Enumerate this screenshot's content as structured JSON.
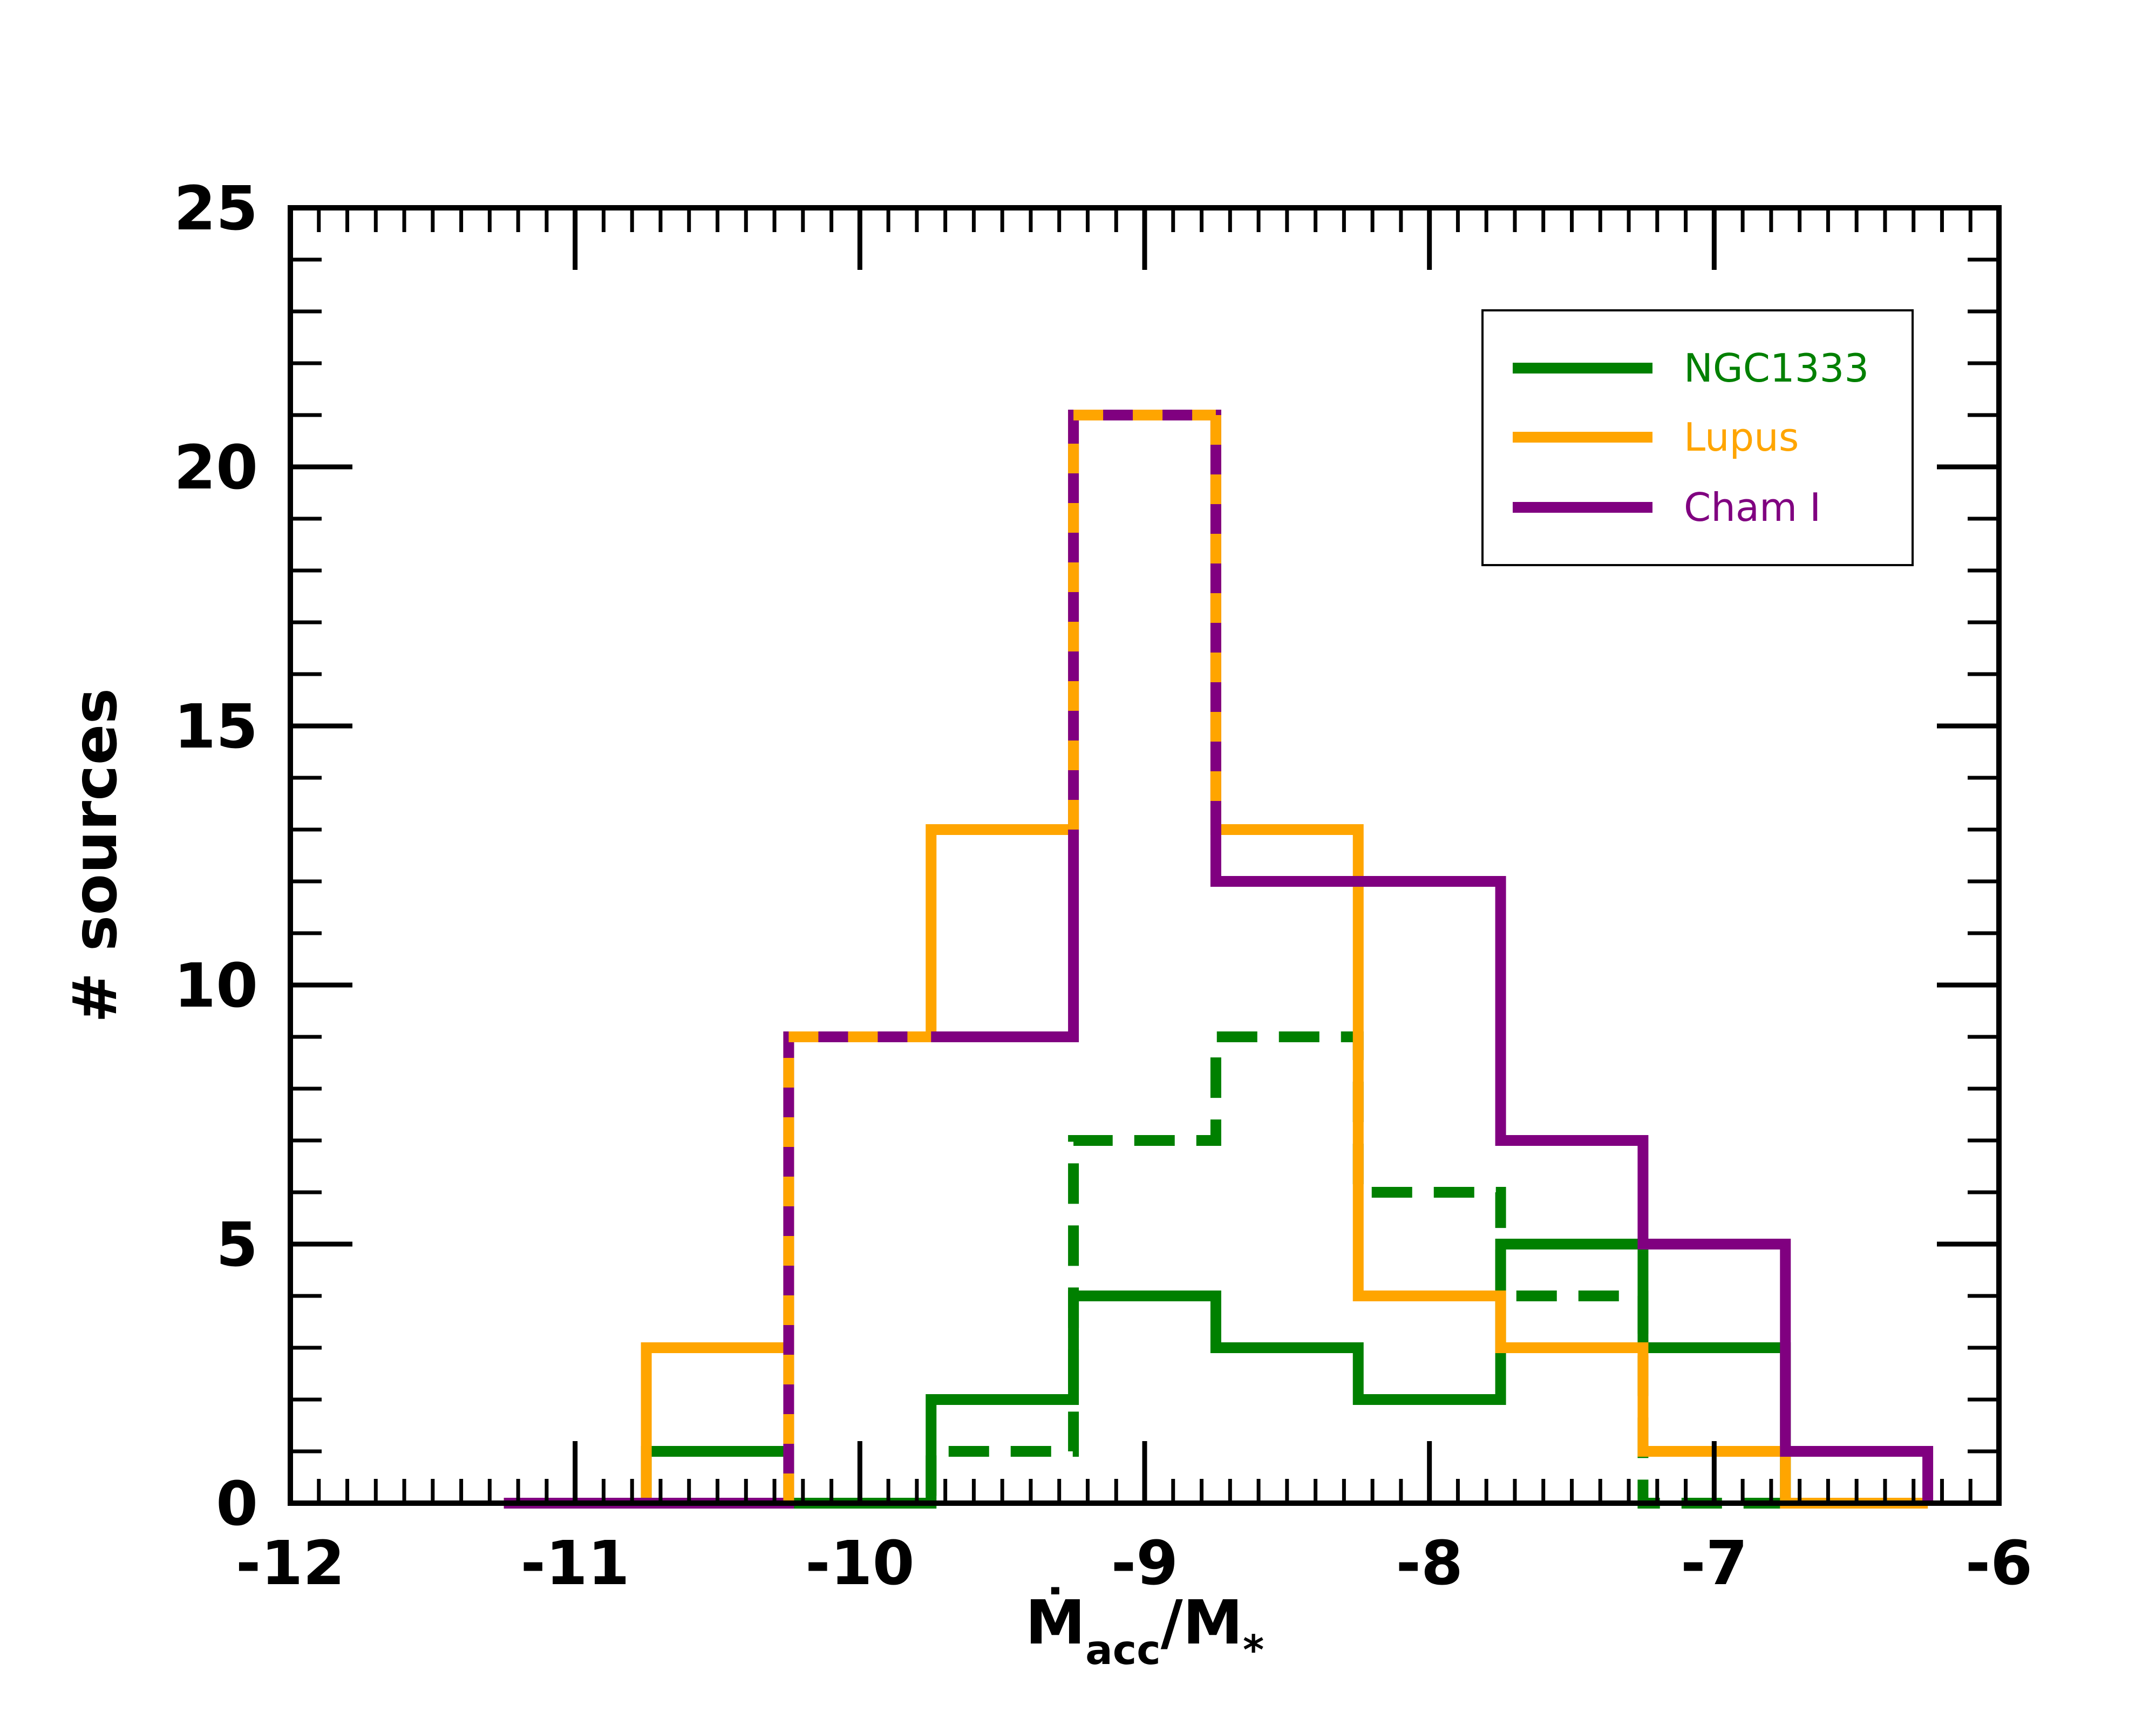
{
  "chart_data": {
    "type": "histogram",
    "xlim": [
      -12,
      -6
    ],
    "ylim": [
      0,
      25
    ],
    "x_ticks": [
      "-12",
      "-11",
      "-10",
      "-9",
      "-8",
      "-7",
      "-6"
    ],
    "y_ticks": [
      "0",
      "5",
      "10",
      "15",
      "20",
      "25"
    ],
    "x_tick_values": [
      -12,
      -11,
      -10,
      -9,
      -8,
      -7,
      -6
    ],
    "y_tick_values": [
      0,
      5,
      10,
      15,
      20,
      25
    ],
    "xlabel": {
      "main": "Ṁ",
      "sub": "acc",
      "sep": "/M",
      "sub2": "*"
    },
    "ylabel": "# sources",
    "legend_position": "upper-right",
    "bin_edges": [
      -11.25,
      -10.75,
      -10.25,
      -9.75,
      -9.25,
      -8.75,
      -8.25,
      -7.75,
      -7.25,
      -6.75,
      -6.25
    ],
    "series": [
      {
        "name": "NGC1333",
        "color": "#008000",
        "style": "solid",
        "values": [
          0,
          1,
          0,
          2,
          4,
          3,
          2,
          5,
          3,
          0
        ]
      },
      {
        "name": "NGC1333 (dashed)",
        "color": "#008000",
        "style": "dashed",
        "legend": false,
        "values": [
          0,
          0,
          0,
          1,
          7,
          9,
          6,
          4,
          0,
          0
        ]
      },
      {
        "name": "Lupus",
        "color": "#FFA500",
        "style": "solid",
        "values": [
          0,
          3,
          9,
          13,
          21,
          13,
          4,
          3,
          1,
          0
        ]
      },
      {
        "name": "Cham I",
        "color": "#800080",
        "style": "solid",
        "values": [
          0,
          0,
          9,
          9,
          21,
          12,
          12,
          7,
          5,
          1
        ]
      }
    ],
    "legend": [
      {
        "label": "NGC1333",
        "color": "#008000"
      },
      {
        "label": "Lupus",
        "color": "#FFA500"
      },
      {
        "label": "Cham I",
        "color": "#800080"
      }
    ]
  }
}
